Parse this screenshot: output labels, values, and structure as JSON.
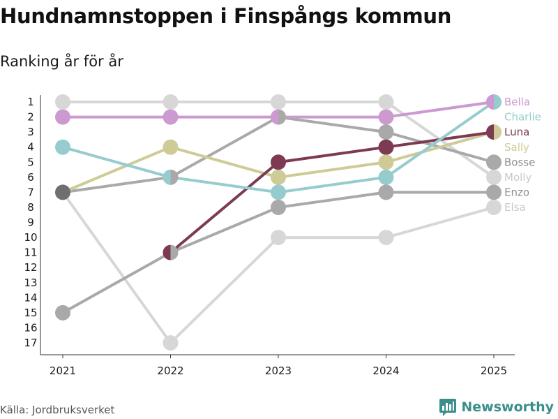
{
  "title": "Hundnamnstoppen i Finspångs kommun",
  "subtitle": "Ranking år för år",
  "source": "Källa: Jordbruksverket",
  "brand": "Newsworthy",
  "chart_data": {
    "type": "line",
    "chart_kind": "bump",
    "x": [
      2021,
      2022,
      2023,
      2024,
      2025
    ],
    "y_ticks": [
      1,
      2,
      3,
      4,
      5,
      6,
      7,
      8,
      9,
      10,
      11,
      12,
      13,
      14,
      15,
      16,
      17
    ],
    "ylim": [
      1,
      17
    ],
    "y_inverted": true,
    "series": [
      {
        "name": "Elsa",
        "color": "#d7d7d7",
        "values": [
          7,
          17,
          10,
          10,
          8
        ]
      },
      {
        "name": "Molly",
        "color": "#d7d7d7",
        "values": [
          1,
          1,
          1,
          1,
          6
        ]
      },
      {
        "name": "Enzo",
        "color": "#a9a9a9",
        "values": [
          15,
          11,
          8,
          7,
          7
        ]
      },
      {
        "name": "Bosse",
        "color": "#a9a9a9",
        "values": [
          7,
          6,
          2,
          3,
          5
        ]
      },
      {
        "name": "Sally",
        "color": "#cecb96",
        "values": [
          7,
          4,
          6,
          5,
          3
        ]
      },
      {
        "name": "Luna",
        "color": "#7d3a52",
        "values": [
          null,
          11,
          5,
          4,
          3
        ]
      },
      {
        "name": "Charlie",
        "color": "#96cccd",
        "values": [
          4,
          6,
          7,
          6,
          1
        ]
      },
      {
        "name": "Bella",
        "color": "#cc99d1",
        "values": [
          2,
          2,
          2,
          2,
          1
        ]
      }
    ],
    "dark_overlap_color": "#6e6e73"
  }
}
